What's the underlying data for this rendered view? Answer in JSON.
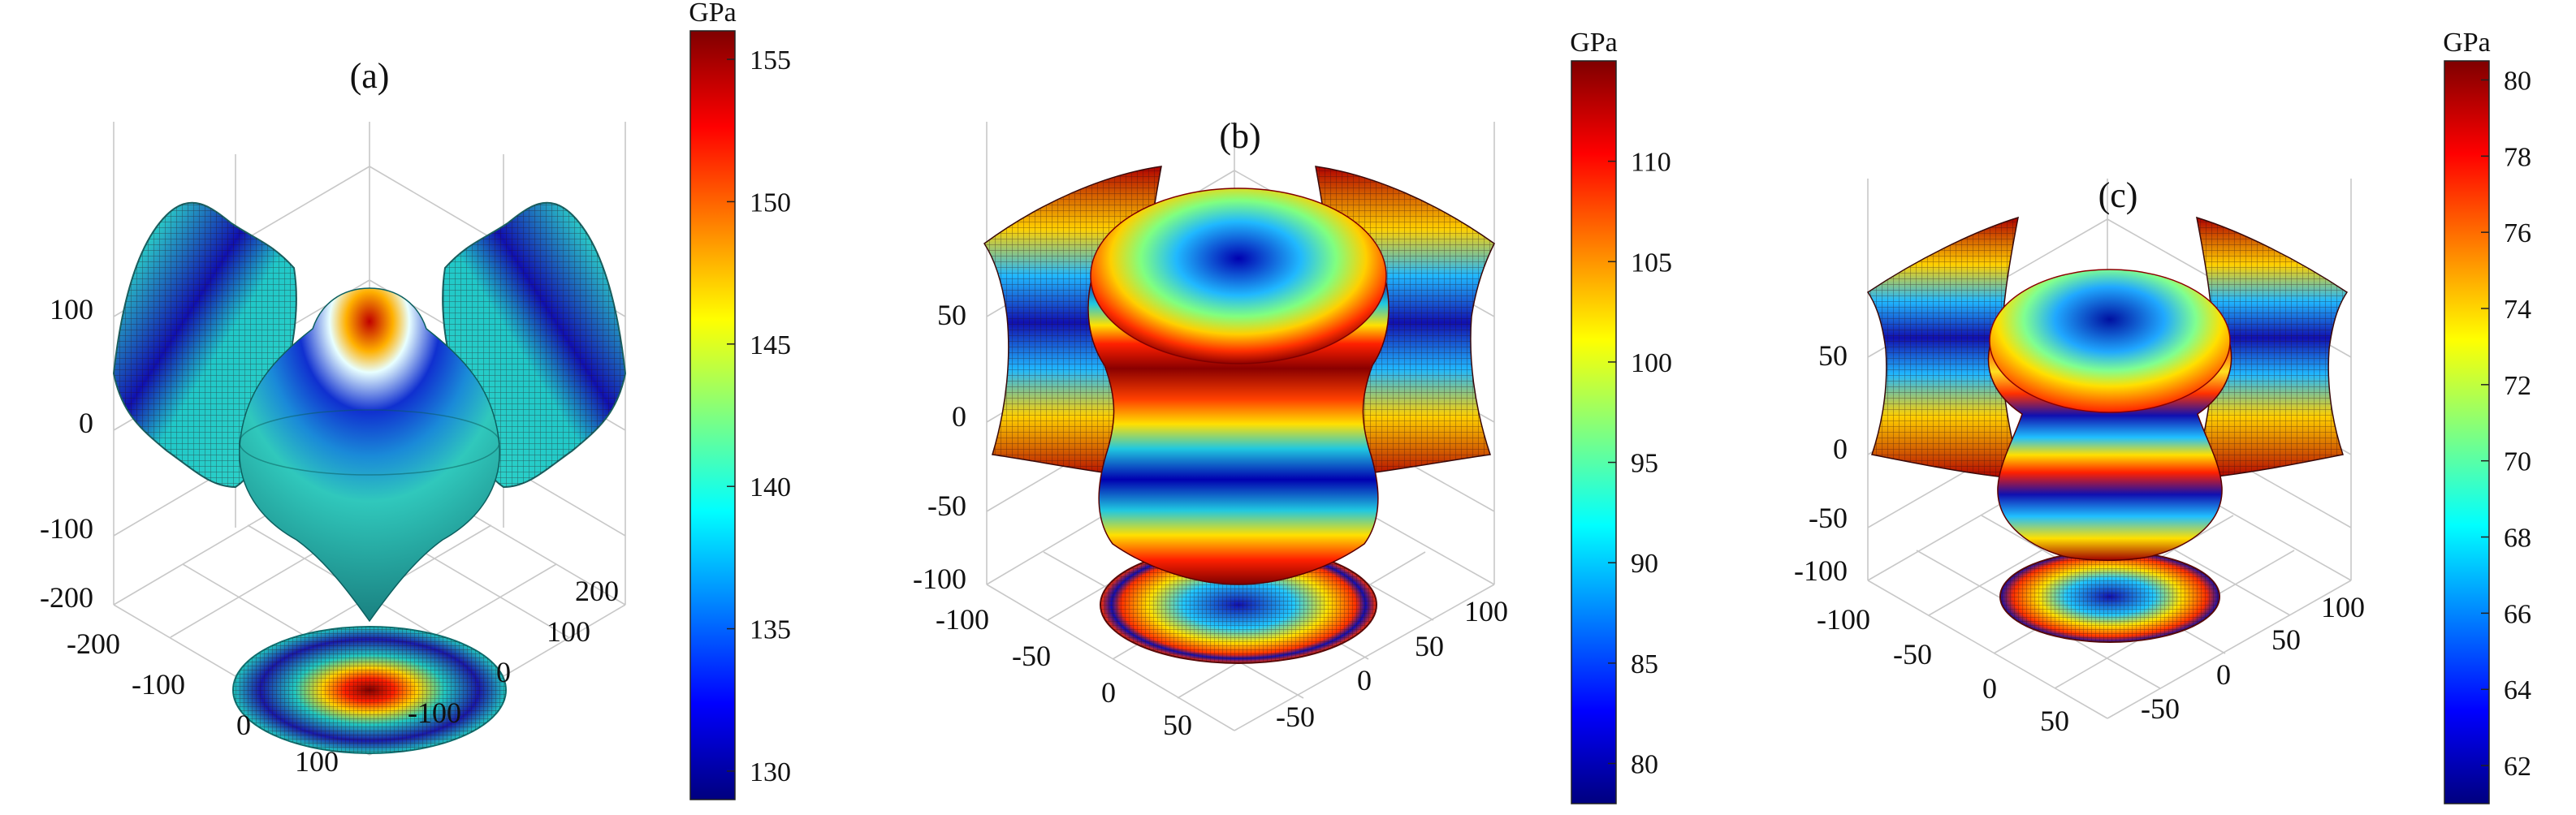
{
  "colors": {
    "jet": [
      "#00007f",
      "#0000ff",
      "#007fff",
      "#00ffff",
      "#7fff7f",
      "#ffff00",
      "#ff7f00",
      "#ff0000",
      "#7f0000"
    ],
    "grid": "#c8c8c8",
    "mesh": "#2a0a14"
  },
  "chart_data": [
    {
      "type": "surface3d",
      "panel_label": "(a)",
      "colorbar": {
        "unit": "GPa",
        "range": [
          129,
          156
        ],
        "ticks": [
          130,
          135,
          140,
          145,
          150,
          155
        ]
      },
      "z_ticks": [
        100,
        0,
        -100,
        -200
      ],
      "x_ticks": [
        -200,
        -100,
        0,
        100
      ],
      "y_ticks": [
        200,
        100,
        0,
        -100
      ],
      "surface_color_range": [
        129,
        156
      ]
    },
    {
      "type": "surface3d",
      "panel_label": "(b)",
      "colorbar": {
        "unit": "GPa",
        "range": [
          78,
          115
        ],
        "ticks": [
          80,
          85,
          90,
          95,
          100,
          105,
          110
        ]
      },
      "z_ticks": [
        50,
        0,
        -50,
        -100
      ],
      "x_ticks": [
        -100,
        -50,
        0,
        50
      ],
      "y_ticks": [
        100,
        50,
        0,
        -50
      ],
      "surface_color_range": [
        78,
        115
      ]
    },
    {
      "type": "surface3d",
      "panel_label": "(c)",
      "colorbar": {
        "unit": "GPa",
        "range": [
          61,
          80.5
        ],
        "ticks": [
          62,
          64,
          66,
          68,
          70,
          72,
          74,
          76,
          78,
          80
        ]
      },
      "z_ticks": [
        50,
        0,
        -50,
        -100
      ],
      "x_ticks": [
        -100,
        -50,
        0,
        50
      ],
      "y_ticks": [
        100,
        50,
        0,
        -50
      ],
      "surface_color_range": [
        61,
        80.5
      ]
    }
  ]
}
